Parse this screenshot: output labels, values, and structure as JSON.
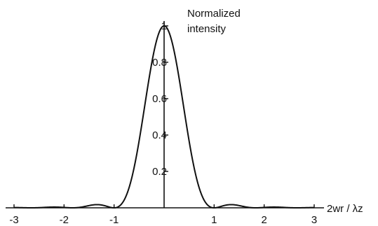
{
  "chart_data": {
    "type": "line",
    "title": "",
    "ylabel_lines": [
      "Normalized",
      "intensity"
    ],
    "xlabel": "2wr / λz",
    "xlim": [
      -3,
      3
    ],
    "ylim": [
      0,
      1
    ],
    "x_ticks": [
      "-3",
      "-2",
      "-1",
      "1",
      "2",
      "3"
    ],
    "x_tick_values": [
      -3,
      -2,
      -1,
      1,
      2,
      3
    ],
    "y_ticks": [
      "0.2",
      "0.4",
      "0.6",
      "0.8",
      "1"
    ],
    "y_tick_values": [
      0.2,
      0.4,
      0.6,
      0.8,
      1
    ],
    "grid": false,
    "series": [
      {
        "function": "airy-like [2 J1(pi*1.22*x)/(pi*1.22*x)]^2",
        "x": [
          -3,
          -2.5,
          -2,
          -1.8,
          -1.6,
          -1.4,
          -1.2,
          -1.0,
          -0.8,
          -0.6,
          -0.4,
          -0.2,
          0,
          0.2,
          0.4,
          0.6,
          0.8,
          1.0,
          1.2,
          1.4,
          1.6,
          1.8,
          2,
          2.5,
          3
        ],
        "y": [
          0.0,
          0.004,
          0.0,
          0.007,
          0.017,
          0.006,
          0.0,
          0.07,
          0.3,
          0.55,
          0.77,
          0.93,
          1.0,
          0.93,
          0.77,
          0.55,
          0.3,
          0.07,
          0.0,
          0.006,
          0.017,
          0.007,
          0.0,
          0.004,
          0.0
        ]
      }
    ]
  }
}
